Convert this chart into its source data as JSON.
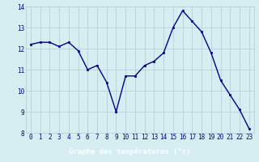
{
  "hours": [
    0,
    1,
    2,
    3,
    4,
    5,
    6,
    7,
    8,
    9,
    10,
    11,
    12,
    13,
    14,
    15,
    16,
    17,
    18,
    19,
    20,
    21,
    22,
    23
  ],
  "temperatures": [
    12.2,
    12.3,
    12.3,
    12.1,
    12.3,
    11.9,
    11.0,
    11.2,
    10.4,
    9.0,
    10.7,
    10.7,
    11.2,
    11.4,
    11.8,
    13.0,
    13.8,
    13.3,
    12.8,
    11.8,
    10.5,
    9.8,
    9.1,
    8.2
  ],
  "line_color": "#00008B",
  "marker_color": "#00008B",
  "bg_color": "#d6eef2",
  "grid_color": "#b8d0d8",
  "xlabel": "Graphe des températures (°c)",
  "xlabel_bar_color": "#2222aa",
  "ylim": [
    8,
    14
  ],
  "yticks": [
    8,
    9,
    10,
    11,
    12,
    13,
    14
  ],
  "xticks": [
    0,
    1,
    2,
    3,
    4,
    5,
    6,
    7,
    8,
    9,
    10,
    11,
    12,
    13,
    14,
    15,
    16,
    17,
    18,
    19,
    20,
    21,
    22,
    23
  ],
  "tick_label_color": "#00008B",
  "tick_label_fontsize": 5.5,
  "xlabel_fontsize": 6.5,
  "line_width": 1.0,
  "marker_size": 2.0,
  "fig_width": 3.2,
  "fig_height": 2.0,
  "dpi": 100
}
